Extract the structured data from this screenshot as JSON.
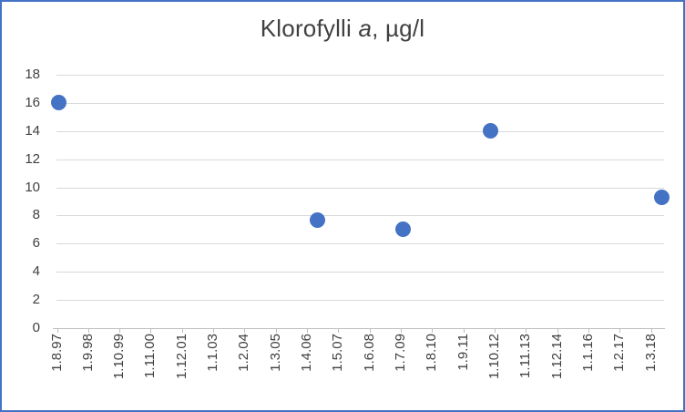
{
  "chart": {
    "title": {
      "prefix": "Klorofylli ",
      "italic": "a",
      "suffix": ", µg/l",
      "full": "Klorofylli a, µg/l"
    },
    "colors": {
      "marker": "#4472C4",
      "chart_border": "#4472C4",
      "gridline": "#D9D9D9",
      "axis_line": "#BFBFBF",
      "tick_text": "#404040",
      "title_text": "#404040",
      "background": "#FFFFFF"
    }
  },
  "chart_data": {
    "type": "scatter",
    "title": "Klorofylli a, µg/l",
    "xlabel": "",
    "ylabel": "",
    "ylim": [
      0,
      18
    ],
    "y_ticks": [
      0,
      2,
      4,
      6,
      8,
      10,
      12,
      14,
      16,
      18
    ],
    "x_tick_labels": [
      "1.8.97",
      "1.9.98",
      "1.10.99",
      "1.11.00",
      "1.12.01",
      "1.1.03",
      "1.2.04",
      "1.3.05",
      "1.4.06",
      "1.5.07",
      "1.6.08",
      "1.7.09",
      "1.8.10",
      "1.9.11",
      "1.10.12",
      "1.11.13",
      "1.12.14",
      "1.1.16",
      "1.2.17",
      "1.3.18"
    ],
    "x_axis_note": "date axis, ticks every 13 months, labels rotated 90° CCW",
    "grid": true,
    "legend": false,
    "points": [
      {
        "x_frac": 0.003,
        "x_date_estimate": "1.8.1997",
        "y": 16.0
      },
      {
        "x_frac": 0.429,
        "x_date_estimate": "~8.2006",
        "y": 7.7
      },
      {
        "x_frac": 0.571,
        "x_date_estimate": "~8.2009",
        "y": 7.0
      },
      {
        "x_frac": 0.714,
        "x_date_estimate": "~8.2012",
        "y": 14.0
      },
      {
        "x_frac": 0.997,
        "x_date_estimate": "~8.2018",
        "y": 9.3
      }
    ]
  }
}
